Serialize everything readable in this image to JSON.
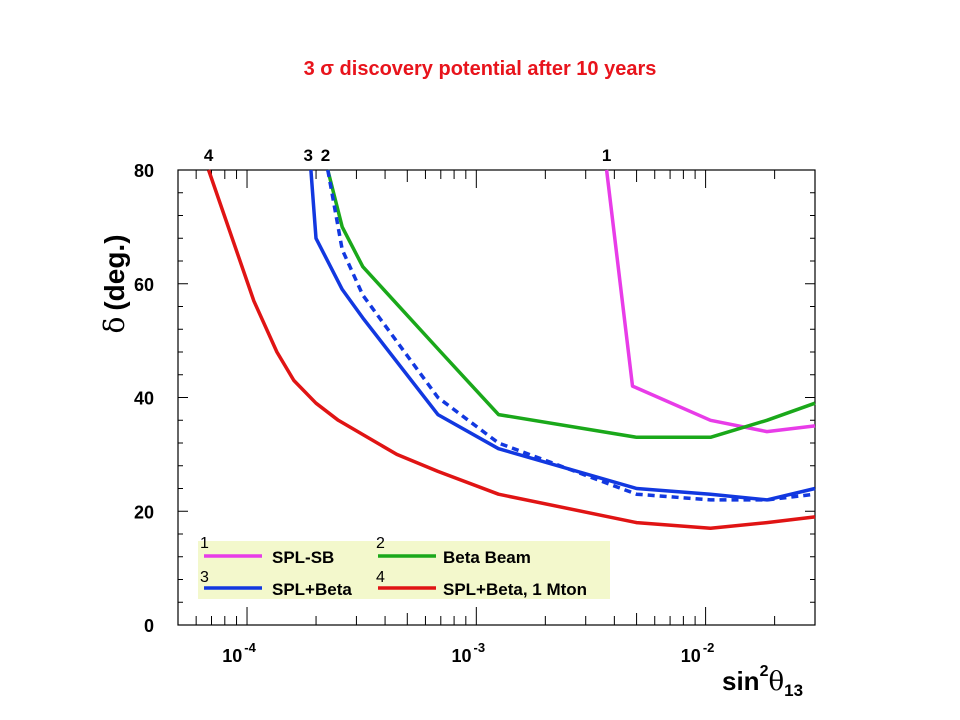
{
  "chart_data": {
    "type": "line",
    "title": "3 σ discovery potential after 10 years",
    "ylabel_symbol": "δ",
    "ylabel_text": "(deg.)",
    "xlabel_base": "sin",
    "xlabel_sup": "2",
    "xlabel_theta": "θ",
    "xlabel_sub": "13",
    "x_scale": "log",
    "xlim": [
      5e-05,
      0.03
    ],
    "ylim": [
      0,
      80
    ],
    "y_ticks": [
      {
        "value": 0,
        "label": "0"
      },
      {
        "value": 20,
        "label": "20"
      },
      {
        "value": 40,
        "label": "40"
      },
      {
        "value": 60,
        "label": "60"
      },
      {
        "value": 80,
        "label": "80"
      }
    ],
    "x_ticks": [
      {
        "value": 0.0001,
        "base": "10",
        "exp": "-4"
      },
      {
        "value": 0.001,
        "base": "10",
        "exp": "-3"
      },
      {
        "value": 0.01,
        "base": "10",
        "exp": "-2"
      }
    ],
    "grid": false,
    "legend_position": "bottom-left",
    "series": [
      {
        "name": "SPL-SB",
        "number": "1",
        "color": "#e83ce8",
        "dash": false,
        "points": [
          [
            0.0037,
            80
          ],
          [
            0.0048,
            42
          ],
          [
            0.0105,
            36
          ],
          [
            0.0185,
            34
          ],
          [
            0.03,
            35
          ]
        ]
      },
      {
        "name": "Beta Beam",
        "number": "2",
        "color": "#1aa81a",
        "dash": false,
        "points": [
          [
            0.000225,
            80
          ],
          [
            0.00026,
            70
          ],
          [
            0.00032,
            63
          ],
          [
            0.0007,
            48
          ],
          [
            0.00125,
            37
          ],
          [
            0.005,
            33
          ],
          [
            0.0105,
            33
          ],
          [
            0.0185,
            36
          ],
          [
            0.03,
            39
          ]
        ]
      },
      {
        "name": "SPL+Beta",
        "number": "3",
        "color": "#1238e0",
        "dash": false,
        "points": [
          [
            0.00019,
            80
          ],
          [
            0.0002,
            68
          ],
          [
            0.00026,
            59
          ],
          [
            0.00032,
            54
          ],
          [
            0.00068,
            37
          ],
          [
            0.00125,
            31
          ],
          [
            0.005,
            24
          ],
          [
            0.0105,
            23
          ],
          [
            0.0185,
            22
          ],
          [
            0.03,
            24
          ]
        ]
      },
      {
        "name": "SPL+Beta dashed",
        "number": "",
        "color": "#1238e0",
        "dash": true,
        "legend": false,
        "points": [
          [
            0.000225,
            80
          ],
          [
            0.00026,
            66
          ],
          [
            0.00032,
            58
          ],
          [
            0.00068,
            40
          ],
          [
            0.00125,
            32
          ],
          [
            0.005,
            23
          ],
          [
            0.0105,
            22
          ],
          [
            0.0185,
            22
          ],
          [
            0.03,
            23
          ]
        ]
      },
      {
        "name": "SPL+Beta, 1 Mton",
        "number": "4",
        "color": "#e01414",
        "dash": false,
        "points": [
          [
            6.8e-05,
            80
          ],
          [
            0.000107,
            57
          ],
          [
            0.000135,
            48
          ],
          [
            0.00016,
            43
          ],
          [
            0.0002,
            39
          ],
          [
            0.00025,
            36
          ],
          [
            0.00045,
            30
          ],
          [
            0.00068,
            27
          ],
          [
            0.00125,
            23
          ],
          [
            0.005,
            18
          ],
          [
            0.0105,
            17
          ],
          [
            0.0185,
            18
          ],
          [
            0.03,
            19
          ]
        ]
      }
    ],
    "top_labels": [
      {
        "text": "4",
        "x": 6.8e-05
      },
      {
        "text": "3",
        "x": 0.000185
      },
      {
        "text": "2",
        "x": 0.00022
      },
      {
        "text": "1",
        "x": 0.0037
      }
    ],
    "legend_bg": "#f3f8cc"
  }
}
